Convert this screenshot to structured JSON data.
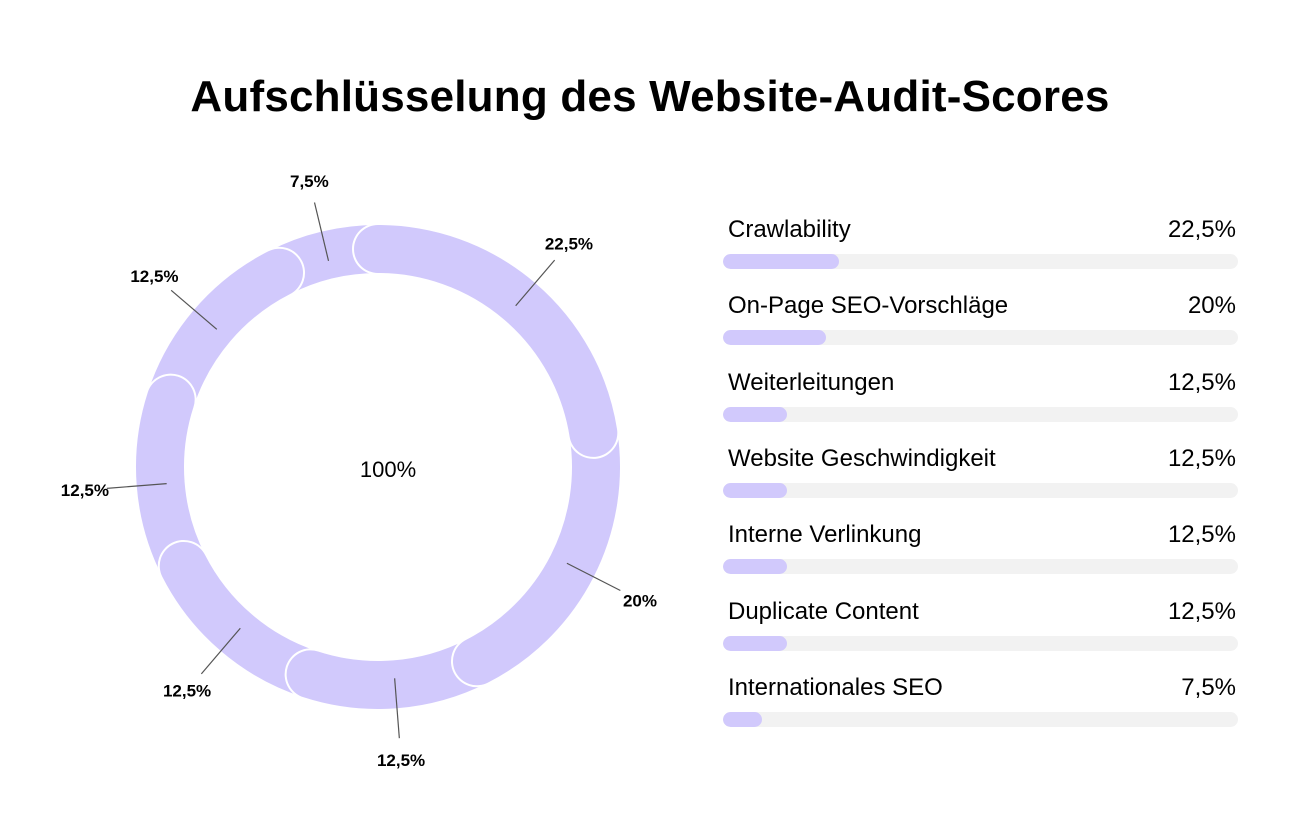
{
  "chart_data": {
    "type": "pie",
    "title": "Aufschlüsselung des Website-Audit-Scores",
    "center_label": "100%",
    "segment_color": "#d1c9fc",
    "track_color": "#f2f2f2",
    "categories": [
      "Crawlability",
      "On-Page SEO-Vorschläge",
      "Weiterleitungen",
      "Website Geschwindigkeit",
      "Interne Verlinkung",
      "Duplicate Content",
      "Internationales SEO"
    ],
    "values": [
      22.5,
      20,
      12.5,
      12.5,
      12.5,
      12.5,
      7.5
    ],
    "value_labels": [
      "22,5%",
      "20%",
      "12,5%",
      "12,5%",
      "12,5%",
      "12,5%",
      "7,5%"
    ],
    "legend": "right"
  }
}
